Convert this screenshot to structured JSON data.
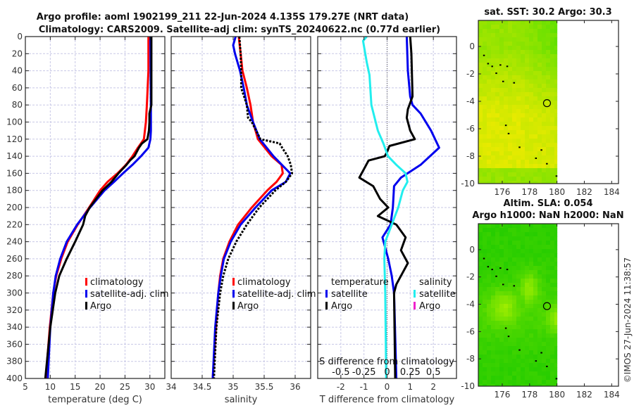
{
  "header": {
    "title_line1": "Argo profile: aoml 1902199_211 22-Jun-2024 4.135S 179.27E (NRT data)",
    "title_line2": "Climatology: CARS2009. Satellite-adj clim: synTS_20240622.nc (0.77d earlier)"
  },
  "copyright": "©IMOS 27-Jun-2024 11:38:57",
  "colors": {
    "climatology": "#ff0000",
    "satellite": "#0000ee",
    "argo": "#000000",
    "sal_satellite": "#22eeee",
    "sal_argo": "#ee22cc"
  },
  "chart_data": [
    {
      "type": "line",
      "id": "temperature",
      "title": "",
      "xlabel": "temperature (deg C)",
      "ylabel": "",
      "xlim": [
        5,
        33
      ],
      "ylim": [
        400,
        0
      ],
      "xticks": [
        5,
        10,
        15,
        20,
        25,
        30
      ],
      "yticks": [
        0,
        20,
        40,
        60,
        80,
        100,
        120,
        140,
        160,
        180,
        200,
        220,
        240,
        260,
        280,
        300,
        320,
        340,
        360,
        380,
        400
      ],
      "grid": true,
      "legend": {
        "placement": "center-right",
        "entries": [
          "climatology",
          "satellite-adj. clim",
          "Argo"
        ]
      },
      "series": [
        {
          "name": "climatology",
          "color": "#ff0000",
          "depth": [
            0,
            40,
            80,
            100,
            120,
            130,
            140,
            150,
            160,
            170,
            180,
            200,
            220,
            240,
            260,
            280,
            300,
            340,
            400
          ],
          "values": [
            29.7,
            29.7,
            29.4,
            29.2,
            28.8,
            27.6,
            26.5,
            25.2,
            23.5,
            21.5,
            20.0,
            17.8,
            15.5,
            13.5,
            12.2,
            11.2,
            10.6,
            9.9,
            9.1
          ]
        },
        {
          "name": "satellite-adj. clim",
          "color": "#0000ee",
          "depth": [
            0,
            80,
            110,
            120,
            130,
            140,
            150,
            160,
            170,
            180,
            200,
            220,
            240,
            260,
            280,
            300,
            340,
            400
          ],
          "values": [
            30.1,
            30.2,
            30.2,
            30.1,
            29.7,
            28.2,
            26.5,
            24.6,
            22.8,
            20.9,
            18.0,
            15.4,
            13.3,
            12.0,
            11.1,
            10.6,
            10.0,
            9.5
          ]
        },
        {
          "name": "Argo",
          "color": "#000000",
          "depth": [
            0,
            80,
            90,
            100,
            110,
            120,
            125,
            130,
            140,
            145,
            150,
            160,
            170,
            180,
            200,
            210,
            220,
            240,
            260,
            280,
            300,
            340,
            400
          ],
          "values": [
            30.3,
            30.3,
            29.9,
            29.9,
            29.8,
            29.5,
            28.4,
            27.8,
            26.9,
            26.0,
            25.3,
            23.7,
            22.3,
            20.5,
            17.9,
            17.0,
            16.6,
            15.0,
            13.3,
            11.8,
            11.0,
            10.0,
            9.0
          ]
        }
      ]
    },
    {
      "type": "line",
      "id": "salinity",
      "xlabel": "salinity",
      "xlim": [
        34,
        36.25
      ],
      "ylim": [
        400,
        0
      ],
      "xticks": [
        34,
        34.5,
        35,
        35.5,
        36
      ],
      "grid": true,
      "legend": {
        "placement": "center-right",
        "entries": [
          "climatology",
          "satellite-adj. clim",
          "Argo"
        ]
      },
      "series": [
        {
          "name": "climatology",
          "color": "#ff0000",
          "depth": [
            0,
            20,
            40,
            60,
            80,
            100,
            120,
            140,
            150,
            160,
            170,
            180,
            200,
            220,
            240,
            260,
            280,
            300,
            340,
            400
          ],
          "values": [
            35.09,
            35.12,
            35.15,
            35.22,
            35.28,
            35.32,
            35.4,
            35.62,
            35.78,
            35.8,
            35.7,
            35.55,
            35.3,
            35.08,
            34.94,
            34.84,
            34.79,
            34.76,
            34.72,
            34.67
          ]
        },
        {
          "name": "satellite-adj. clim",
          "color": "#0000ee",
          "depth": [
            0,
            10,
            20,
            40,
            60,
            80,
            100,
            120,
            140,
            160,
            170,
            180,
            200,
            220,
            240,
            260,
            280,
            300,
            340,
            400
          ],
          "values": [
            35.04,
            35.0,
            35.03,
            35.11,
            35.17,
            35.22,
            35.32,
            35.43,
            35.65,
            35.92,
            35.85,
            35.62,
            35.36,
            35.12,
            34.96,
            34.85,
            34.8,
            34.76,
            34.71,
            34.67
          ]
        },
        {
          "name": "Argo",
          "color": "#000000",
          "style": "dotted",
          "depth": [
            0,
            20,
            40,
            60,
            80,
            95,
            100,
            120,
            125,
            130,
            140,
            150,
            160,
            170,
            180,
            200,
            220,
            240,
            260,
            280,
            300,
            340,
            400
          ],
          "values": [
            35.1,
            35.12,
            35.13,
            35.13,
            35.22,
            35.24,
            35.3,
            35.44,
            35.75,
            35.79,
            35.88,
            35.93,
            35.95,
            35.85,
            35.68,
            35.42,
            35.22,
            35.05,
            34.92,
            34.84,
            34.79,
            34.73,
            34.69
          ]
        }
      ]
    },
    {
      "type": "line",
      "id": "difference",
      "xlabel": "T difference from climatology",
      "xlim": [
        -3,
        3
      ],
      "xticks": [
        -2,
        -1,
        0,
        1,
        2
      ],
      "secondary_xlabel": "S difference from climatology",
      "secondary_xlim": [
        -0.75,
        0.75
      ],
      "secondary_xticks": [
        -0.5,
        -0.25,
        0,
        0.25,
        0.5
      ],
      "secondary_xtick_labels": [
        "-0.5",
        "-0.25",
        "0",
        "0.25",
        "0.5"
      ],
      "ylim": [
        400,
        0
      ],
      "grid": true,
      "legend": {
        "placement": "center",
        "temperature_title": "temperature",
        "salinity_title": "salinity",
        "entries": [
          "satellite",
          "Argo",
          "satellite",
          "Argo"
        ]
      },
      "series": [
        {
          "name": "temperature satellite",
          "axis": "T",
          "color": "#0000ee",
          "depth": [
            0,
            40,
            70,
            80,
            90,
            110,
            130,
            150,
            165,
            175,
            200,
            220,
            235,
            260,
            280,
            300,
            400
          ],
          "values": [
            0.85,
            0.9,
            1.0,
            1.1,
            1.45,
            1.9,
            2.25,
            1.45,
            0.6,
            0.3,
            0.25,
            0.15,
            -0.2,
            0.05,
            0.2,
            0.3,
            0.4
          ]
        },
        {
          "name": "temperature Argo",
          "axis": "T",
          "color": "#000000",
          "depth": [
            0,
            20,
            70,
            85,
            95,
            110,
            120,
            128,
            135,
            140,
            145,
            155,
            165,
            175,
            190,
            200,
            210,
            220,
            235,
            250,
            265,
            290,
            300,
            400
          ],
          "values": [
            1.0,
            1.05,
            1.1,
            0.9,
            0.85,
            1.0,
            1.2,
            0.1,
            0.0,
            -0.1,
            -0.8,
            -1.0,
            -1.2,
            -0.6,
            -0.3,
            0.05,
            -0.4,
            0.4,
            0.8,
            0.6,
            0.9,
            0.4,
            0.3,
            0.35
          ]
        },
        {
          "name": "salinity satellite",
          "axis": "S",
          "color": "#22eeee",
          "depth": [
            0,
            5,
            30,
            45,
            80,
            110,
            125,
            140,
            150,
            160,
            170,
            180,
            200,
            220,
            240,
            260,
            300,
            400
          ],
          "values": [
            -0.22,
            -0.26,
            -0.22,
            -0.19,
            -0.17,
            -0.1,
            -0.04,
            0.01,
            0.1,
            0.2,
            0.22,
            0.17,
            0.12,
            0.05,
            -0.02,
            -0.03,
            -0.02,
            -0.01
          ]
        }
      ]
    },
    {
      "type": "heatmap",
      "id": "sst_map",
      "title": "sat. SST: 30.2 Argo: 30.3",
      "xlim": [
        174.25,
        184.5
      ],
      "ylim": [
        -10,
        1.9
      ],
      "xticks": [
        176,
        178,
        180,
        182,
        184
      ],
      "yticks": [
        0,
        -2,
        -4,
        -6,
        -8,
        -10
      ],
      "data_extent_lon": [
        174.25,
        180
      ],
      "argo_position": {
        "lon": 179.27,
        "lat": -4.135
      }
    },
    {
      "type": "heatmap",
      "id": "sla_map",
      "title_line1": "Altim. SLA: 0.054",
      "title_line2": "Argo h1000: NaN h2000: NaN",
      "xlim": [
        174.25,
        184.5
      ],
      "ylim": [
        -10,
        1.9
      ],
      "xticks": [
        176,
        178,
        180,
        182,
        184
      ],
      "yticks": [
        0,
        -2,
        -4,
        -6,
        -8,
        -10
      ],
      "data_extent_lon": [
        174.25,
        180
      ],
      "argo_position": {
        "lon": 179.27,
        "lat": -4.135
      }
    }
  ]
}
